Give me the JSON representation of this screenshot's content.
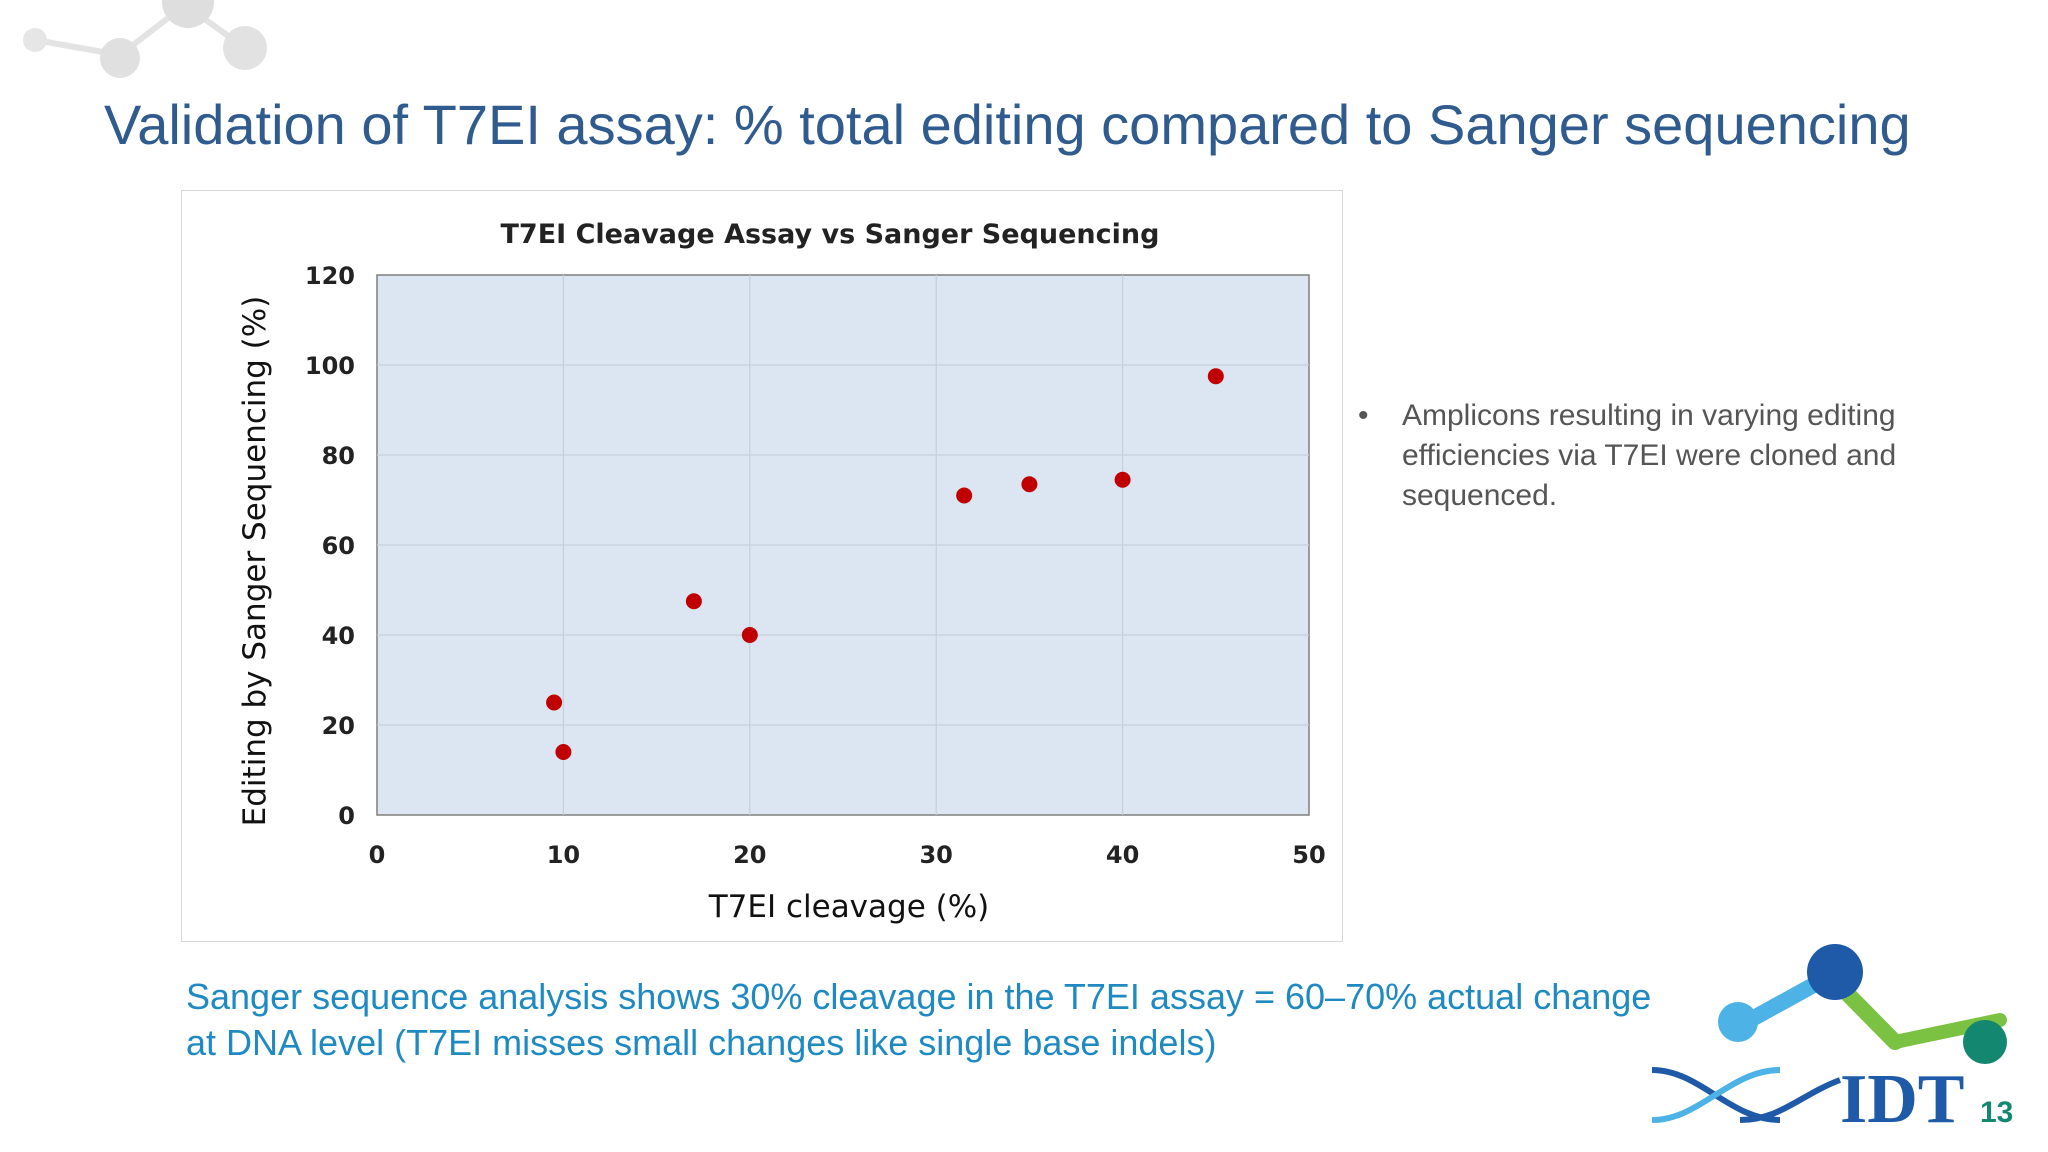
{
  "slide": {
    "title": "Validation of T7EI assay: % total editing compared to Sanger sequencing",
    "bullet": "Amplicons resulting in varying editing efficiencies via T7EI were cloned and sequenced.",
    "caption_line1": "Sanger sequence analysis shows 30% cleavage in the T7EI assay = 60–70% actual change",
    "caption_line2": "at DNA level (T7EI misses small  changes like single base indels)",
    "page_number": "13",
    "logo_text": "IDT",
    "logo_icon": "molecule-icon"
  },
  "colors": {
    "title": "#2f5b8e",
    "caption": "#1f8ac2",
    "plot_bg": "#dce6f2",
    "marker": "#c00000",
    "page_number": "#13876f"
  },
  "chart_data": {
    "type": "scatter",
    "title": "T7EI Cleavage Assay vs Sanger Sequencing",
    "xlabel": "T7EI cleavage (%)",
    "ylabel": "Editing by Sanger Sequencing (%)",
    "xlim": [
      0,
      50
    ],
    "ylim": [
      0,
      120
    ],
    "xticks": [
      0,
      10,
      20,
      30,
      40,
      50
    ],
    "yticks": [
      0,
      20,
      40,
      60,
      80,
      100,
      120
    ],
    "grid": true,
    "legend": "none",
    "points": [
      {
        "x": 9.5,
        "y": 25
      },
      {
        "x": 10,
        "y": 14
      },
      {
        "x": 17,
        "y": 47.5
      },
      {
        "x": 20,
        "y": 40
      },
      {
        "x": 31.5,
        "y": 71
      },
      {
        "x": 35,
        "y": 73.5
      },
      {
        "x": 40,
        "y": 74.5
      },
      {
        "x": 45,
        "y": 97.5
      }
    ]
  }
}
